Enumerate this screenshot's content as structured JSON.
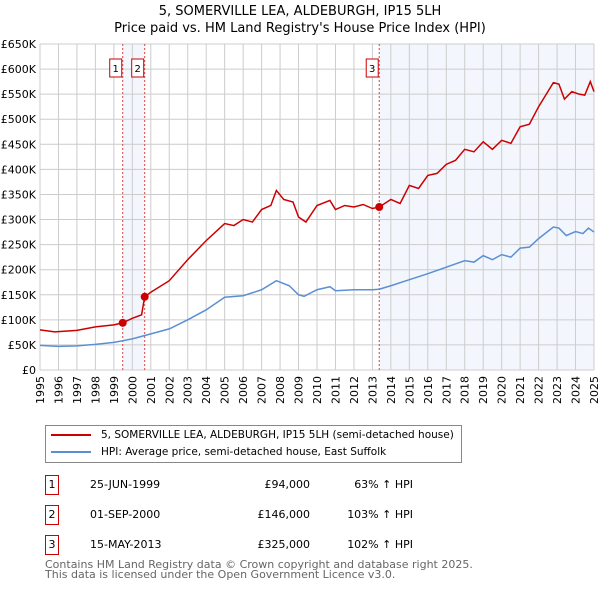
{
  "chart_data": {
    "type": "line",
    "title": "5, SOMERVILLE LEA, ALDEBURGH, IP15 5LH",
    "subtitle": "Price paid vs. HM Land Registry's House Price Index (HPI)",
    "xlim": [
      1995,
      2025
    ],
    "ylim": [
      0,
      650000
    ],
    "yticks": [
      0,
      50000,
      100000,
      150000,
      200000,
      250000,
      300000,
      350000,
      400000,
      450000,
      500000,
      550000,
      600000,
      650000
    ],
    "ytick_labels": [
      "£0",
      "£50K",
      "£100K",
      "£150K",
      "£200K",
      "£250K",
      "£300K",
      "£350K",
      "£400K",
      "£450K",
      "£500K",
      "£550K",
      "£600K",
      "£650K"
    ],
    "xticks": [
      1995,
      1996,
      1997,
      1998,
      1999,
      2000,
      2001,
      2002,
      2003,
      2004,
      2005,
      2006,
      2007,
      2008,
      2009,
      2010,
      2011,
      2012,
      2013,
      2014,
      2015,
      2016,
      2017,
      2018,
      2019,
      2020,
      2021,
      2022,
      2023,
      2024,
      2025
    ],
    "grid": true,
    "series": [
      {
        "name": "5, SOMERVILLE LEA, ALDEBURGH, IP15 5LH (semi-detached house)",
        "color": "#cc0000",
        "points": [
          [
            1995,
            80000
          ],
          [
            1995.8,
            76000
          ],
          [
            1997,
            79000
          ],
          [
            1998,
            86000
          ],
          [
            1999,
            90000
          ],
          [
            1999.48,
            94000
          ],
          [
            2000,
            103000
          ],
          [
            2000.5,
            110000
          ],
          [
            2000.67,
            146000
          ],
          [
            2001,
            155000
          ],
          [
            2002,
            178000
          ],
          [
            2003,
            220000
          ],
          [
            2004,
            258000
          ],
          [
            2005,
            292000
          ],
          [
            2005.5,
            288000
          ],
          [
            2006,
            300000
          ],
          [
            2006.5,
            295000
          ],
          [
            2007,
            320000
          ],
          [
            2007.5,
            328000
          ],
          [
            2007.8,
            358000
          ],
          [
            2008.2,
            340000
          ],
          [
            2008.7,
            335000
          ],
          [
            2009,
            305000
          ],
          [
            2009.4,
            295000
          ],
          [
            2010,
            328000
          ],
          [
            2010.7,
            338000
          ],
          [
            2011,
            320000
          ],
          [
            2011.5,
            328000
          ],
          [
            2012,
            325000
          ],
          [
            2012.5,
            330000
          ],
          [
            2013,
            322000
          ],
          [
            2013.37,
            325000
          ],
          [
            2014,
            340000
          ],
          [
            2014.5,
            332000
          ],
          [
            2015,
            368000
          ],
          [
            2015.5,
            362000
          ],
          [
            2016,
            388000
          ],
          [
            2016.5,
            392000
          ],
          [
            2017,
            410000
          ],
          [
            2017.5,
            418000
          ],
          [
            2018,
            440000
          ],
          [
            2018.5,
            435000
          ],
          [
            2019,
            455000
          ],
          [
            2019.5,
            440000
          ],
          [
            2020,
            458000
          ],
          [
            2020.5,
            452000
          ],
          [
            2021,
            485000
          ],
          [
            2021.5,
            490000
          ],
          [
            2022,
            525000
          ],
          [
            2022.8,
            573000
          ],
          [
            2023.1,
            570000
          ],
          [
            2023.4,
            540000
          ],
          [
            2023.8,
            555000
          ],
          [
            2024.2,
            550000
          ],
          [
            2024.5,
            548000
          ],
          [
            2024.8,
            575000
          ],
          [
            2025,
            555000
          ]
        ]
      },
      {
        "name": "HPI: Average price, semi-detached house, East Suffolk",
        "color": "#5b8fd4",
        "points": [
          [
            1995,
            49000
          ],
          [
            1996,
            47000
          ],
          [
            1997,
            48000
          ],
          [
            1998,
            51000
          ],
          [
            1999,
            55000
          ],
          [
            2000,
            62000
          ],
          [
            2001,
            72000
          ],
          [
            2002,
            82000
          ],
          [
            2003,
            100000
          ],
          [
            2004,
            120000
          ],
          [
            2005,
            145000
          ],
          [
            2006,
            148000
          ],
          [
            2007,
            160000
          ],
          [
            2007.8,
            178000
          ],
          [
            2008.5,
            168000
          ],
          [
            2009,
            150000
          ],
          [
            2009.3,
            147000
          ],
          [
            2010,
            160000
          ],
          [
            2010.7,
            166000
          ],
          [
            2011,
            158000
          ],
          [
            2012,
            160000
          ],
          [
            2013,
            160000
          ],
          [
            2013.37,
            161000
          ],
          [
            2014,
            168000
          ],
          [
            2015,
            180000
          ],
          [
            2016,
            192000
          ],
          [
            2017,
            205000
          ],
          [
            2018,
            218000
          ],
          [
            2018.5,
            215000
          ],
          [
            2019,
            228000
          ],
          [
            2019.5,
            220000
          ],
          [
            2020,
            230000
          ],
          [
            2020.5,
            225000
          ],
          [
            2021,
            243000
          ],
          [
            2021.5,
            245000
          ],
          [
            2022,
            262000
          ],
          [
            2022.8,
            285000
          ],
          [
            2023.1,
            283000
          ],
          [
            2023.5,
            268000
          ],
          [
            2024,
            276000
          ],
          [
            2024.4,
            272000
          ],
          [
            2024.7,
            283000
          ],
          [
            2025,
            275000
          ]
        ]
      }
    ],
    "sales": [
      {
        "label": "1",
        "x": 1999.48,
        "y": 94000
      },
      {
        "label": "2",
        "x": 2000.67,
        "y": 146000
      },
      {
        "label": "3",
        "x": 2013.37,
        "y": 325000
      }
    ],
    "shaded": [
      [
        1999.48,
        2000.67
      ],
      [
        2013.37,
        2025
      ]
    ]
  },
  "legend": {
    "property": "5, SOMERVILLE LEA, ALDEBURGH, IP15 5LH (semi-detached house)",
    "hpi": "HPI: Average price, semi-detached house, East Suffolk"
  },
  "transactions": [
    {
      "num": "1",
      "date": "25-JUN-1999",
      "price": "£94,000",
      "hpi": "63% ↑ HPI"
    },
    {
      "num": "2",
      "date": "01-SEP-2000",
      "price": "£146,000",
      "hpi": "103% ↑ HPI"
    },
    {
      "num": "3",
      "date": "15-MAY-2013",
      "price": "£325,000",
      "hpi": "102% ↑ HPI"
    }
  ],
  "footer": {
    "line1": "Contains HM Land Registry data © Crown copyright and database right 2025.",
    "line2": "This data is licensed under the Open Government Licence v3.0."
  }
}
